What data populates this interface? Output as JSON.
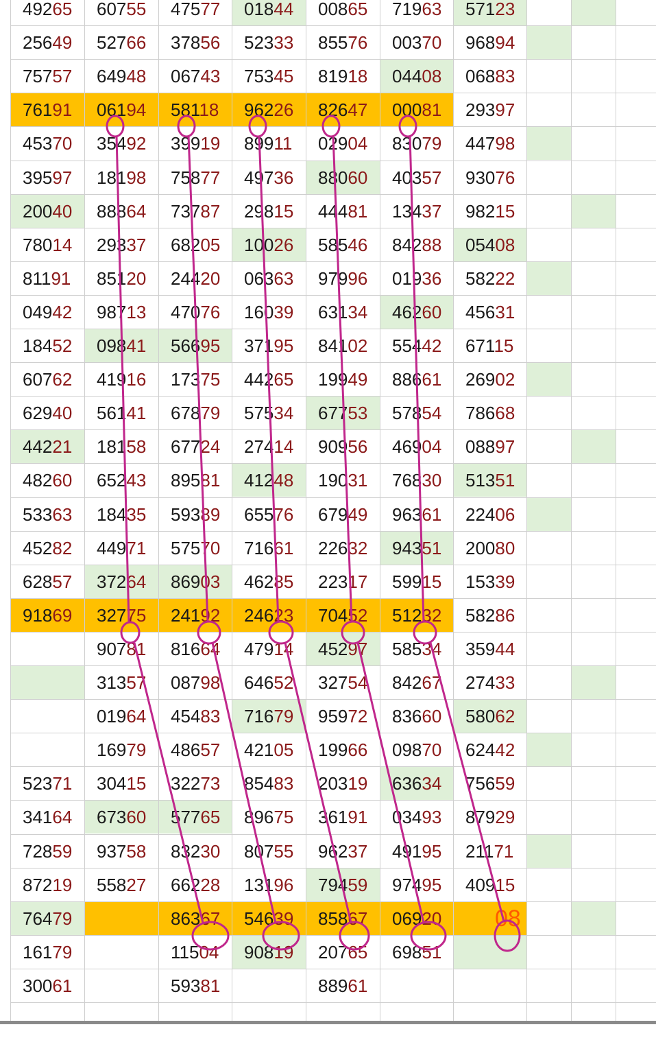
{
  "colors": {
    "highlight_row": "#ffc000",
    "green_cell": "#dff0d8",
    "annotation": "#c0278c"
  },
  "rows": [
    {
      "cells": [
        "49265",
        "60755",
        "47577",
        "01844",
        "00865",
        "71963",
        "57123"
      ],
      "green": [
        3,
        6,
        8
      ]
    },
    {
      "cells": [
        "25649",
        "52766",
        "37856",
        "52333",
        "85576",
        "00370",
        "96894"
      ],
      "green": [
        7
      ]
    },
    {
      "cells": [
        "75757",
        "64948",
        "06743",
        "75345",
        "81918",
        "04408",
        "06883"
      ],
      "green": [
        5
      ]
    },
    {
      "cells": [
        "76191",
        "06194",
        "58118",
        "96226",
        "82647",
        "00081",
        "29397"
      ],
      "highlight": true
    },
    {
      "cells": [
        "45370",
        "35492",
        "39919",
        "89911",
        "02904",
        "83079",
        "44798"
      ],
      "green": [
        7
      ]
    },
    {
      "cells": [
        "39597",
        "18198",
        "75877",
        "49736",
        "88060",
        "40357",
        "93076"
      ],
      "green": [
        4
      ]
    },
    {
      "cells": [
        "20040",
        "88864",
        "73787",
        "29815",
        "44481",
        "13437",
        "98215"
      ],
      "green": [
        0,
        8
      ]
    },
    {
      "cells": [
        "78014",
        "29337",
        "68205",
        "10026",
        "58546",
        "84288",
        "05408"
      ],
      "green": [
        3,
        6
      ]
    },
    {
      "cells": [
        "81191",
        "85120",
        "24420",
        "06363",
        "97996",
        "01936",
        "58222"
      ],
      "green": [
        7
      ]
    },
    {
      "cells": [
        "04942",
        "98713",
        "47076",
        "16039",
        "63134",
        "46260",
        "45631"
      ],
      "green": [
        5
      ]
    },
    {
      "cells": [
        "18452",
        "09841",
        "56695",
        "37195",
        "84102",
        "55442",
        "67115"
      ],
      "green": [
        1,
        2
      ]
    },
    {
      "cells": [
        "60762",
        "41916",
        "17375",
        "44265",
        "19949",
        "88661",
        "26902"
      ],
      "green": [
        7
      ]
    },
    {
      "cells": [
        "62940",
        "56141",
        "67879",
        "57534",
        "67753",
        "57854",
        "78668"
      ],
      "green": [
        4
      ]
    },
    {
      "cells": [
        "44221",
        "18158",
        "67724",
        "27414",
        "90956",
        "46904",
        "08897"
      ],
      "green": [
        0,
        8
      ]
    },
    {
      "cells": [
        "48260",
        "65243",
        "89581",
        "41248",
        "19031",
        "76830",
        "51351"
      ],
      "green": [
        3,
        6
      ]
    },
    {
      "cells": [
        "53363",
        "18435",
        "59389",
        "65576",
        "67949",
        "96361",
        "22406"
      ],
      "green": [
        7
      ]
    },
    {
      "cells": [
        "45282",
        "44971",
        "57570",
        "71661",
        "22632",
        "94351",
        "20080"
      ],
      "green": [
        5
      ]
    },
    {
      "cells": [
        "62857",
        "37264",
        "86903",
        "46285",
        "22317",
        "59915",
        "15339"
      ],
      "green": [
        1,
        2
      ]
    },
    {
      "cells": [
        "91869",
        "32775",
        "24192",
        "24623",
        "70452",
        "51232",
        "58286"
      ],
      "highlight": true
    },
    {
      "cells": [
        "",
        "90781",
        "81664",
        "47914",
        "45297",
        "58534",
        "35944"
      ],
      "green": [
        4
      ]
    },
    {
      "cells": [
        "",
        "31357",
        "08798",
        "64652",
        "32754",
        "84267",
        "27433"
      ],
      "green": [
        0,
        8
      ]
    },
    {
      "cells": [
        "",
        "01964",
        "45483",
        "71679",
        "95972",
        "83660",
        "58062"
      ],
      "green": [
        3,
        6
      ]
    },
    {
      "cells": [
        "",
        "16979",
        "48657",
        "42105",
        "19966",
        "09870",
        "62442"
      ],
      "green": [
        7
      ]
    },
    {
      "cells": [
        "52371",
        "30415",
        "32273",
        "85483",
        "20319",
        "63634",
        "75659"
      ],
      "green": [
        5
      ]
    },
    {
      "cells": [
        "34164",
        "67360",
        "57765",
        "89675",
        "36191",
        "03493",
        "87929"
      ],
      "green": [
        1,
        2
      ]
    },
    {
      "cells": [
        "72859",
        "93758",
        "83230",
        "80755",
        "96237",
        "49195",
        "21171"
      ],
      "green": [
        7
      ]
    },
    {
      "cells": [
        "87219",
        "55827",
        "66228",
        "13196",
        "79459",
        "97495",
        "40915"
      ],
      "green": [
        4
      ]
    },
    {
      "cells": [
        "76479",
        "",
        "86367",
        "54639",
        "85867",
        "06920",
        "08"
      ],
      "highlight_cols": [
        1,
        2,
        3,
        4,
        5,
        6
      ],
      "green": [
        0,
        8
      ]
    },
    {
      "cells": [
        "16179",
        "",
        "11504",
        "90819",
        "20765",
        "69851",
        ""
      ],
      "green": [
        3,
        6
      ]
    },
    {
      "cells": [
        "30061",
        "",
        "59381",
        "",
        "88961",
        "",
        ""
      ]
    }
  ]
}
